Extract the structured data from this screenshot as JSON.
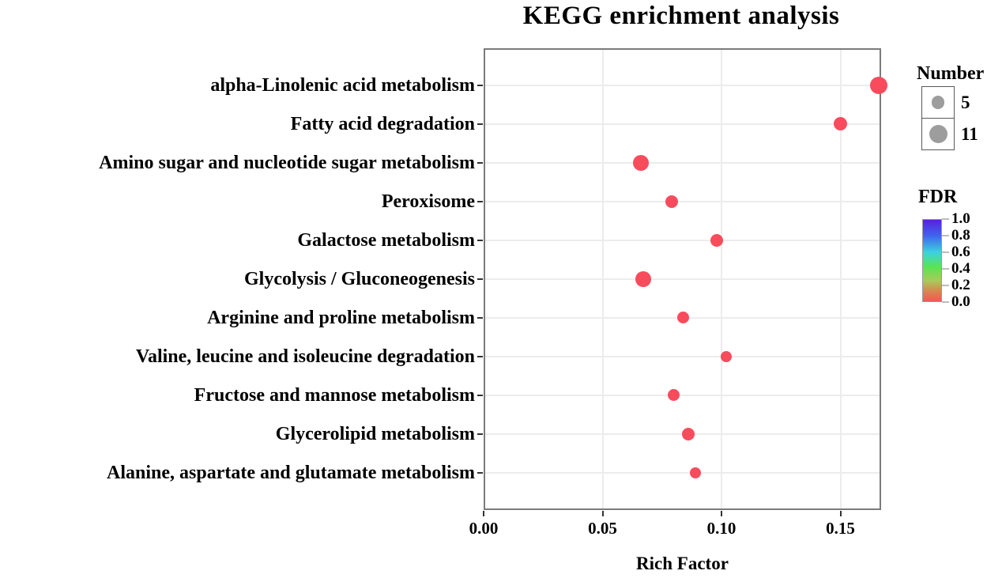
{
  "title": "KEGG enrichment analysis",
  "chart_data": {
    "type": "scatter",
    "title": "KEGG enrichment analysis",
    "xlabel": "Rich Factor",
    "ylabel": "",
    "xlim": [
      0,
      0.167
    ],
    "grid": true,
    "legend_position": "right",
    "point_color": "#f84c5d",
    "fdr_note": "All plotted points share the same salmon-red color, i.e. FDR near 0.0 on the colorbar",
    "x_ticks": [
      {
        "label": "0.00",
        "value": 0
      },
      {
        "label": "0.05",
        "value": 0.05
      },
      {
        "label": "0.10",
        "value": 0.1
      },
      {
        "label": "0.15",
        "value": 0.15
      }
    ],
    "points": [
      {
        "pathway": "alpha-Linolenic acid metabolism",
        "rich_factor": 0.166,
        "number": 11,
        "radius_px": 11
      },
      {
        "pathway": "Fatty acid degradation",
        "rich_factor": 0.15,
        "number": 6,
        "radius_px": 8.5
      },
      {
        "pathway": "Amino sugar and nucleotide sugar metabolism",
        "rich_factor": 0.066,
        "number": 9,
        "radius_px": 10
      },
      {
        "pathway": "Peroxisome",
        "rich_factor": 0.079,
        "number": 6,
        "radius_px": 8
      },
      {
        "pathway": "Galactose metabolism",
        "rich_factor": 0.098,
        "number": 6,
        "radius_px": 8
      },
      {
        "pathway": "Glycolysis / Gluconeogenesis",
        "rich_factor": 0.067,
        "number": 9,
        "radius_px": 10
      },
      {
        "pathway": "Arginine and proline metabolism",
        "rich_factor": 0.084,
        "number": 5,
        "radius_px": 7.5
      },
      {
        "pathway": "Valine, leucine and isoleucine degradation",
        "rich_factor": 0.102,
        "number": 5,
        "radius_px": 7
      },
      {
        "pathway": "Fructose and mannose metabolism",
        "rich_factor": 0.08,
        "number": 5,
        "radius_px": 7.5
      },
      {
        "pathway": "Glycerolipid metabolism",
        "rich_factor": 0.086,
        "number": 6,
        "radius_px": 8
      },
      {
        "pathway": "Alanine, aspartate and glutamate metabolism",
        "rich_factor": 0.089,
        "number": 5,
        "radius_px": 7
      }
    ],
    "legend_number": {
      "title": "Number",
      "swatch_color": "#9d9d9d",
      "entries": [
        {
          "label": "5",
          "radius_px": 8.3
        },
        {
          "label": "11",
          "radius_px": 11.5
        }
      ]
    },
    "legend_fdr": {
      "title": "FDR",
      "tick_labels": [
        "1.0",
        "0.8",
        "0.6",
        "0.4",
        "0.2",
        "0.0"
      ],
      "gradient_stops": [
        {
          "color": "#5a1fe0",
          "pos": 0
        },
        {
          "color": "#3e66ee",
          "pos": 20
        },
        {
          "color": "#3cd3e0",
          "pos": 40
        },
        {
          "color": "#59e452",
          "pos": 58
        },
        {
          "color": "#aac95a",
          "pos": 75
        },
        {
          "color": "#d9854f",
          "pos": 88
        },
        {
          "color": "#ee5a55",
          "pos": 100
        }
      ]
    }
  }
}
